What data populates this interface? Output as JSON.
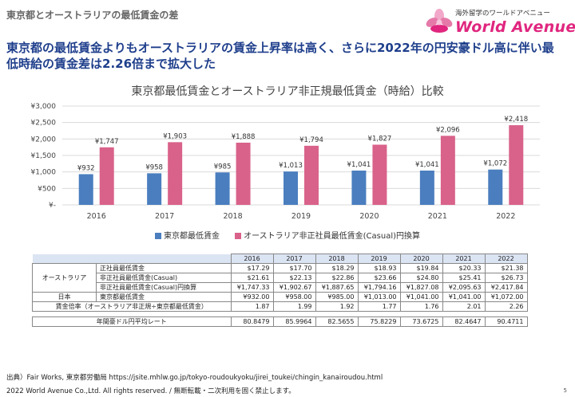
{
  "header": {
    "label": "東京都とオーストラリアの最低賃金の差"
  },
  "logo": {
    "tagline": "海外留学のワールドアベニュー",
    "name": "World Avenue"
  },
  "headline": "東京都の最低賃金よりもオーストラリアの賃金上昇率は高く、さらに2022年の円安豪ドル高に伴い最低時給の賃金差は2.26倍まで拡大した",
  "colors": {
    "tokyo": "#4a7ebf",
    "australia": "#d9628a",
    "headline": "#1f3f8c"
  },
  "chart_data": {
    "type": "bar",
    "title": "東京都最低賃金とオーストラリア非正規最低賃金（時給）比較",
    "categories": [
      "2016",
      "2017",
      "2018",
      "2019",
      "2020",
      "2021",
      "2022"
    ],
    "series": [
      {
        "name": "東京都最低賃金",
        "values": [
          932,
          958,
          985,
          1013,
          1041,
          1041,
          1072
        ],
        "labels": [
          "¥932",
          "¥958",
          "¥985",
          "¥1,013",
          "¥1,041",
          "¥1,041",
          "¥1,072"
        ]
      },
      {
        "name": "オーストラリア非正社員最低賃金(Casual)円換算",
        "values": [
          1747,
          1903,
          1888,
          1794,
          1827,
          2096,
          2418
        ],
        "labels": [
          "¥1,747",
          "¥1,903",
          "¥1,888",
          "¥1,794",
          "¥1,827",
          "¥2,096",
          "¥2,418"
        ]
      }
    ],
    "ylim": [
      0,
      3000
    ],
    "yticks": [
      "¥-",
      "¥500",
      "¥1,000",
      "¥1,500",
      "¥2,000",
      "¥2,500",
      "¥3,000"
    ],
    "legend_position": "bottom"
  },
  "table": {
    "years": [
      "2016",
      "2017",
      "2018",
      "2019",
      "2020",
      "2021",
      "2022"
    ],
    "group_australia": "オーストラリア",
    "group_japan": "日本",
    "rows": [
      {
        "label": "正社員最低賃金",
        "values": [
          "$17.29",
          "$17.70",
          "$18.29",
          "$18.93",
          "$19.84",
          "$20.33",
          "$21.38"
        ]
      },
      {
        "label": "非正社員最低賃金(Casual)",
        "values": [
          "$21.61",
          "$22.13",
          "$22.86",
          "$23.66",
          "$24.80",
          "$25.41",
          "$26.73"
        ]
      },
      {
        "label": "非正社員最低賃金(Casual)円換算",
        "values": [
          "¥1,747.33",
          "¥1,902.67",
          "¥1,887.65",
          "¥1,794.16",
          "¥1,827.08",
          "¥2,095.63",
          "¥2,417.84"
        ]
      },
      {
        "label": "東京都最低賃金",
        "values": [
          "¥932.00",
          "¥958.00",
          "¥985.00",
          "¥1,013.00",
          "¥1,041.00",
          "¥1,041.00",
          "¥1,072.00"
        ]
      }
    ],
    "ratio_label": "賃金倍率（オーストラリア非正規÷東京都最低賃金）",
    "ratio_values": [
      "1.87",
      "1.99",
      "1.92",
      "1.77",
      "1.76",
      "2.01",
      "2.26"
    ],
    "fx_label": "年間豪ドル円平均レート",
    "fx_values": [
      "80.8479",
      "85.9964",
      "82.5655",
      "75.8229",
      "73.6725",
      "82.4647",
      "90.4711"
    ]
  },
  "source": "出典）Fair Works, 東京都労働局 https://jsite.mhlw.go.jp/tokyo-roudoukyoku/jirei_toukei/chingin_kanairoudou.html",
  "footer": "2022 World Avenue Co.,Ltd. All rights reserved. / 無断転載・二次利用を固く禁止します。",
  "page_number": "5"
}
